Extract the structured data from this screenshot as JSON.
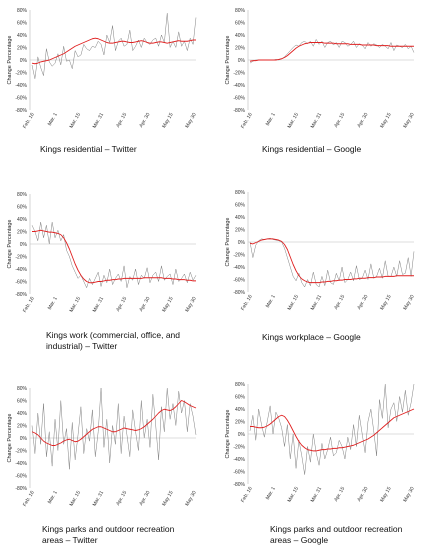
{
  "chart_data": [
    {
      "id": "p1",
      "type": "line",
      "title": "Kings residential – Twitter",
      "ylabel": "Change Percentage",
      "ylim": [
        -80,
        80
      ],
      "yticks": [
        "80%",
        "60%",
        "40%",
        "20%",
        "0%",
        "-20%",
        "-40%",
        "-60%",
        "-80%"
      ],
      "xticks": [
        "Feb. 16",
        "Mar. 1",
        "Mar. 15",
        "Mar. 31",
        "Apr. 15",
        "Apr. 30",
        "May 15",
        "May 30"
      ],
      "series": [
        {
          "role": "daily",
          "color": "#808080",
          "values": [
            -8,
            -30,
            5,
            -12,
            -25,
            18,
            -3,
            -10,
            -5,
            10,
            -8,
            22,
            -2,
            0,
            -14,
            15,
            5,
            8,
            25,
            18,
            15,
            22,
            20,
            30,
            25,
            8,
            40,
            28,
            55,
            15,
            30,
            35,
            22,
            25,
            48,
            15,
            22,
            32,
            20,
            35,
            28,
            25,
            32,
            35,
            22,
            40,
            28,
            75,
            20,
            30,
            20,
            45,
            22,
            30,
            15,
            35,
            25,
            68
          ]
        },
        {
          "role": "trend",
          "color": "#e02020",
          "values": [
            -5,
            -6,
            -5,
            -3,
            -2,
            -1,
            0,
            2,
            4,
            6,
            8,
            10,
            13,
            16,
            19,
            22,
            24,
            26,
            28,
            30,
            32,
            34,
            35,
            34,
            32,
            30,
            28,
            27,
            27,
            28,
            29,
            30,
            30,
            29,
            28,
            28,
            29,
            30,
            31,
            30,
            28,
            27,
            27,
            28,
            29,
            29,
            28,
            27,
            28,
            29,
            30,
            31,
            30,
            30,
            30,
            31,
            32,
            32
          ]
        }
      ]
    },
    {
      "id": "p2",
      "type": "line",
      "title": "Kings residential – Google",
      "ylabel": "Change Percentage",
      "ylim": [
        -80,
        80
      ],
      "yticks": [
        "80%",
        "60%",
        "40%",
        "20%",
        "0%",
        "-20%",
        "-40%",
        "-60%",
        "-80%"
      ],
      "xticks": [
        "Feb. 16",
        "Mar. 1",
        "Mar. 15",
        "Mar. 31",
        "Apr. 15",
        "Apr. 30",
        "May 15",
        "May 30"
      ],
      "series": [
        {
          "role": "daily",
          "color": "#808080",
          "values": [
            -5,
            -2,
            0,
            0,
            0,
            0,
            0,
            0,
            0,
            1,
            0,
            2,
            5,
            10,
            15,
            20,
            24,
            22,
            28,
            30,
            26,
            30,
            22,
            33,
            25,
            30,
            20,
            28,
            30,
            24,
            28,
            20,
            30,
            28,
            22,
            25,
            30,
            20,
            26,
            24,
            18,
            28,
            22,
            26,
            24,
            20,
            25,
            22,
            18,
            28,
            15,
            24,
            22,
            20,
            25,
            18,
            22,
            12
          ]
        },
        {
          "role": "trend",
          "color": "#e02020",
          "values": [
            -2,
            -1,
            -1,
            0,
            0,
            0,
            0,
            0,
            0,
            0,
            1,
            2,
            4,
            7,
            11,
            15,
            19,
            22,
            24,
            26,
            27,
            28,
            28,
            28,
            28,
            28,
            27,
            27,
            27,
            27,
            26,
            26,
            26,
            26,
            26,
            25,
            25,
            25,
            25,
            24,
            24,
            24,
            24,
            24,
            23,
            23,
            23,
            23,
            23,
            22,
            22,
            22,
            22,
            22,
            22,
            22,
            22,
            22
          ]
        }
      ]
    },
    {
      "id": "p3",
      "type": "line",
      "title": "Kings work (commercial, office, and industrial) – Twitter",
      "ylabel": "Change Percentage",
      "ylim": [
        -80,
        80
      ],
      "yticks": [
        "80%",
        "60%",
        "40%",
        "20%",
        "0%",
        "-20%",
        "-40%",
        "-60%",
        "-80%"
      ],
      "xticks": [
        "Feb. 16",
        "Mar. 1",
        "Mar. 15",
        "Mar. 31",
        "Apr. 15",
        "Apr. 30",
        "May 15",
        "May 30"
      ],
      "series": [
        {
          "role": "daily",
          "color": "#808080",
          "values": [
            30,
            20,
            5,
            35,
            10,
            30,
            0,
            35,
            10,
            22,
            5,
            15,
            -10,
            -20,
            -35,
            -45,
            -55,
            -50,
            -60,
            -70,
            -55,
            -65,
            -55,
            -45,
            -68,
            -50,
            -62,
            -40,
            -65,
            -55,
            -48,
            -60,
            -35,
            -70,
            -52,
            -58,
            -40,
            -65,
            -50,
            -55,
            -38,
            -62,
            -50,
            -45,
            -60,
            -35,
            -58,
            -52,
            -48,
            -65,
            -40,
            -60,
            -55,
            -48,
            -62,
            -45,
            -58,
            -50
          ]
        },
        {
          "role": "trend",
          "color": "#e02020",
          "values": [
            20,
            20,
            21,
            22,
            21,
            20,
            19,
            19,
            18,
            17,
            15,
            10,
            2,
            -8,
            -20,
            -32,
            -42,
            -50,
            -56,
            -60,
            -62,
            -62,
            -61,
            -60,
            -60,
            -59,
            -58,
            -58,
            -57,
            -57,
            -56,
            -56,
            -55,
            -55,
            -55,
            -55,
            -55,
            -55,
            -55,
            -54,
            -54,
            -54,
            -54,
            -54,
            -54,
            -54,
            -55,
            -55,
            -55,
            -56,
            -56,
            -57,
            -57,
            -57,
            -58,
            -58,
            -59,
            -59
          ]
        }
      ]
    },
    {
      "id": "p4",
      "type": "line",
      "title": "Kings workplace – Google",
      "ylabel": "Change Percentage",
      "ylim": [
        -80,
        80
      ],
      "yticks": [
        "80%",
        "60%",
        "40%",
        "20%",
        "0%",
        "-20%",
        "-40%",
        "-60%",
        "-80%"
      ],
      "xticks": [
        "Feb. 16",
        "Mar. 1",
        "Mar. 15",
        "Mar. 31",
        "Apr. 15",
        "Apr. 30",
        "May 15",
        "May 30"
      ],
      "series": [
        {
          "role": "daily",
          "color": "#808080",
          "values": [
            0,
            -25,
            -5,
            2,
            5,
            4,
            5,
            6,
            4,
            3,
            2,
            0,
            -10,
            -25,
            -40,
            -55,
            -62,
            -50,
            -65,
            -72,
            -60,
            -70,
            -48,
            -68,
            -72,
            -55,
            -70,
            -45,
            -65,
            -68,
            -50,
            -62,
            -40,
            -65,
            -60,
            -48,
            -62,
            -38,
            -60,
            -58,
            -45,
            -60,
            -35,
            -58,
            -55,
            -42,
            -58,
            -30,
            -55,
            -55,
            -40,
            -55,
            -30,
            -52,
            -50,
            -25,
            -55,
            -15
          ]
        },
        {
          "role": "trend",
          "color": "#e02020",
          "values": [
            -2,
            -3,
            -1,
            1,
            3,
            4,
            5,
            5,
            5,
            4,
            3,
            1,
            -4,
            -12,
            -24,
            -36,
            -46,
            -54,
            -59,
            -62,
            -64,
            -65,
            -65,
            -65,
            -65,
            -64,
            -64,
            -63,
            -63,
            -62,
            -62,
            -61,
            -61,
            -60,
            -60,
            -60,
            -59,
            -59,
            -58,
            -58,
            -58,
            -57,
            -57,
            -57,
            -56,
            -56,
            -56,
            -55,
            -55,
            -55,
            -55,
            -54,
            -54,
            -54,
            -54,
            -54,
            -54,
            -54
          ]
        }
      ]
    },
    {
      "id": "p5",
      "type": "line",
      "title": "Kings parks and outdoor recreation areas – Twitter",
      "ylabel": "Change Percentage",
      "ylim": [
        -80,
        80
      ],
      "yticks": [
        "80%",
        "60%",
        "40%",
        "20%",
        "0%",
        "-20%",
        "-40%",
        "-60%",
        "-80%"
      ],
      "xticks": [
        "Feb. 16",
        "Mar. 1",
        "Mar. 15",
        "Mar. 31",
        "Apr. 15",
        "Apr. 30",
        "May 15",
        "May 30"
      ],
      "series": [
        {
          "role": "daily",
          "color": "#808080",
          "values": [
            20,
            -25,
            40,
            -10,
            55,
            -30,
            10,
            -45,
            30,
            -20,
            60,
            -10,
            15,
            -50,
            25,
            -35,
            5,
            50,
            -25,
            15,
            -5,
            45,
            -30,
            10,
            80,
            -15,
            30,
            -40,
            20,
            -10,
            55,
            -25,
            35,
            5,
            -30,
            45,
            10,
            -20,
            60,
            0,
            30,
            -15,
            70,
            20,
            -35,
            50,
            10,
            80,
            30,
            55,
            20,
            75,
            40,
            60,
            10,
            55,
            35,
            5
          ]
        },
        {
          "role": "trend",
          "color": "#e02020",
          "values": [
            10,
            8,
            5,
            0,
            -5,
            -8,
            -10,
            -12,
            -12,
            -10,
            -8,
            -5,
            -3,
            -2,
            -4,
            -6,
            -5,
            -2,
            2,
            6,
            10,
            14,
            16,
            18,
            18,
            16,
            14,
            12,
            10,
            10,
            12,
            14,
            16,
            15,
            14,
            13,
            12,
            13,
            15,
            18,
            22,
            26,
            30,
            35,
            40,
            44,
            46,
            45,
            44,
            46,
            50,
            55,
            60,
            58,
            55,
            52,
            50,
            48
          ]
        }
      ]
    },
    {
      "id": "p6",
      "type": "line",
      "title": "Kings parks and outdoor recreation areas – Google",
      "ylabel": "Change Percentage",
      "ylim": [
        -80,
        80
      ],
      "yticks": [
        "80%",
        "60%",
        "40%",
        "20%",
        "0%",
        "-20%",
        "-40%",
        "-60%",
        "-80%"
      ],
      "xticks": [
        "Feb. 16",
        "Mar. 1",
        "Mar. 15",
        "Mar. 31",
        "Apr. 15",
        "Apr. 30",
        "May 15",
        "May 30"
      ],
      "series": [
        {
          "role": "daily",
          "color": "#808080",
          "values": [
            5,
            30,
            -10,
            40,
            15,
            -5,
            20,
            45,
            0,
            35,
            25,
            10,
            -20,
            15,
            -40,
            0,
            -55,
            -10,
            -35,
            -65,
            -20,
            -45,
            0,
            -30,
            -50,
            -15,
            -40,
            -25,
            -5,
            -35,
            -30,
            -10,
            -20,
            -40,
            -5,
            -25,
            15,
            -20,
            30,
            0,
            -30,
            20,
            40,
            5,
            -35,
            55,
            25,
            80,
            10,
            40,
            50,
            20,
            60,
            35,
            70,
            30,
            50,
            80
          ]
        },
        {
          "role": "trend",
          "color": "#e02020",
          "values": [
            12,
            12,
            11,
            10,
            10,
            11,
            13,
            16,
            20,
            24,
            28,
            30,
            28,
            22,
            14,
            5,
            -4,
            -12,
            -18,
            -22,
            -25,
            -26,
            -27,
            -27,
            -26,
            -25,
            -25,
            -24,
            -24,
            -23,
            -23,
            -22,
            -22,
            -21,
            -20,
            -19,
            -18,
            -16,
            -14,
            -12,
            -10,
            -8,
            -5,
            -2,
            2,
            6,
            10,
            14,
            18,
            22,
            26,
            28,
            30,
            32,
            34,
            36,
            38,
            40
          ]
        }
      ]
    }
  ]
}
